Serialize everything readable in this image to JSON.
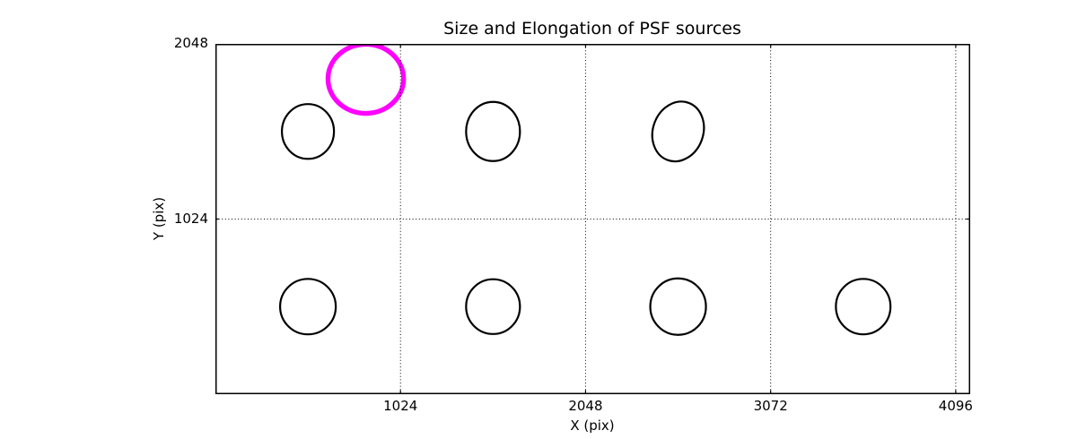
{
  "chart_data": {
    "type": "scatter",
    "title": "Size and Elongation of PSF sources",
    "xlabel": "X (pix)",
    "ylabel": "Y (pix)",
    "xlim": [
      0,
      4176
    ],
    "ylim": [
      0,
      2048
    ],
    "xticks": [
      1024,
      2048,
      3072,
      4096
    ],
    "yticks": [
      1024,
      2048
    ],
    "grid": {
      "on": true,
      "style": "dotted",
      "color": "#000000"
    },
    "legend": null,
    "ellipses": [
      {
        "x": 832,
        "y": 1844,
        "rx": 209,
        "ry": 202,
        "rotation_deg": 0,
        "color": "#ff00ff",
        "line_width": 5.4,
        "role": "flagged-source"
      },
      {
        "x": 512,
        "y": 1536,
        "rx": 144,
        "ry": 160,
        "rotation_deg": 0,
        "color": "#000000",
        "line_width": 2.2,
        "role": "psf-source"
      },
      {
        "x": 1536,
        "y": 1536,
        "rx": 149,
        "ry": 173,
        "rotation_deg": 0,
        "color": "#000000",
        "line_width": 2.2,
        "role": "psf-source"
      },
      {
        "x": 2560,
        "y": 1536,
        "rx": 139,
        "ry": 178,
        "rotation_deg": 20,
        "color": "#000000",
        "line_width": 2.2,
        "role": "psf-source"
      },
      {
        "x": 512,
        "y": 512,
        "rx": 154,
        "ry": 162,
        "rotation_deg": 0,
        "color": "#000000",
        "line_width": 2.2,
        "role": "psf-source"
      },
      {
        "x": 1536,
        "y": 512,
        "rx": 149,
        "ry": 160,
        "rotation_deg": 0,
        "color": "#000000",
        "line_width": 2.2,
        "role": "psf-source"
      },
      {
        "x": 2560,
        "y": 512,
        "rx": 154,
        "ry": 165,
        "rotation_deg": 0,
        "color": "#000000",
        "line_width": 2.2,
        "role": "psf-source"
      },
      {
        "x": 3584,
        "y": 512,
        "rx": 151,
        "ry": 162,
        "rotation_deg": 0,
        "color": "#000000",
        "line_width": 2.2,
        "role": "psf-source"
      }
    ]
  },
  "colors": {
    "background": "#ffffff",
    "axes": "#000000",
    "text": "#000000",
    "grid": "#000000",
    "normal_source": "#000000",
    "flagged_source": "#ff00ff"
  }
}
